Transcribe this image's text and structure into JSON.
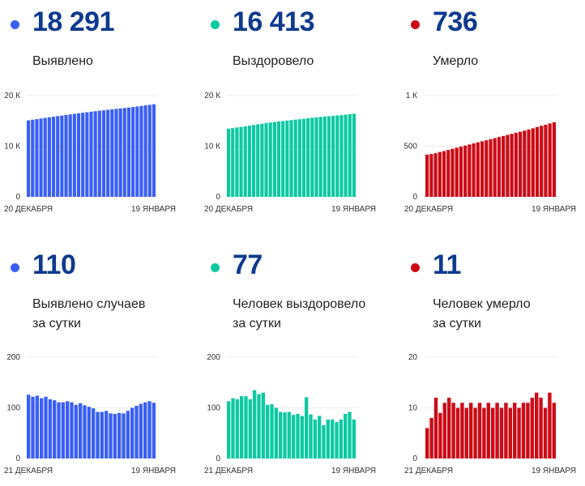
{
  "panels": [
    {
      "number": "18 291",
      "label": [
        "Выявлено"
      ],
      "color": "#3a5ff5"
    },
    {
      "number": "16 413",
      "label": [
        "Выздоровело"
      ],
      "color": "#0cc9a2"
    },
    {
      "number": "736",
      "label": [
        "Умерло"
      ],
      "color": "#cc0b16"
    },
    {
      "number": "110",
      "label": [
        "Выявлено случаев",
        "за сутки"
      ],
      "color": "#3a5ff5"
    },
    {
      "number": "77",
      "label": [
        "Человек выздоровело",
        "за сутки"
      ],
      "color": "#0cc9a2"
    },
    {
      "number": "11",
      "label": [
        "Человек умерло",
        "за сутки"
      ],
      "color": "#cc0b16"
    }
  ],
  "chart_data": [
    {
      "type": "bar",
      "title": "Выявлено",
      "ylim": [
        0,
        20000
      ],
      "yticks": [
        0,
        10000,
        20000
      ],
      "ytick_labels": [
        "0",
        "10 К",
        "20 К"
      ],
      "xlabel_start": "20 ДЕКАБРЯ",
      "xlabel_end": "19 ЯНВАРЯ",
      "color": "#3a5ff5",
      "values": [
        15105,
        15231,
        15353,
        15477,
        15596,
        15718,
        15835,
        15950,
        16061,
        16172,
        16285,
        16396,
        16502,
        16611,
        16716,
        16818,
        16917,
        17009,
        17101,
        17195,
        17284,
        17372,
        17462,
        17551,
        17645,
        17745,
        17849,
        17957,
        18068,
        18181,
        18291
      ]
    },
    {
      "type": "bar",
      "title": "Выздоровело",
      "ylim": [
        0,
        20000
      ],
      "yticks": [
        0,
        10000,
        20000
      ],
      "ytick_labels": [
        "0",
        "10 К",
        "20 К"
      ],
      "xlabel_start": "20 ДЕКАБРЯ",
      "xlabel_end": "19 ЯНВАРЯ",
      "color": "#0cc9a2",
      "values": [
        13468,
        13581,
        13700,
        13817,
        13940,
        14063,
        14180,
        14315,
        14442,
        14572,
        14678,
        14785,
        14885,
        14977,
        15068,
        15160,
        15246,
        15334,
        15418,
        15539,
        15626,
        15703,
        15787,
        15853,
        15930,
        16007,
        16079,
        16156,
        16244,
        16336,
        16413
      ]
    },
    {
      "type": "bar",
      "title": "Умерло",
      "ylim": [
        0,
        1000
      ],
      "yticks": [
        0,
        500,
        1000
      ],
      "ytick_labels": [
        "0",
        "500",
        "1 К"
      ],
      "xlabel_start": "20 ДЕКАБРЯ",
      "xlabel_end": "19 ЯНВАРЯ",
      "color": "#cc0b16",
      "values": [
        417,
        423,
        431,
        443,
        452,
        463,
        475,
        486,
        496,
        507,
        517,
        528,
        538,
        549,
        559,
        570,
        580,
        591,
        601,
        612,
        622,
        633,
        643,
        654,
        665,
        677,
        690,
        702,
        712,
        725,
        736
      ]
    },
    {
      "type": "bar",
      "title": "Выявлено случаев за сутки",
      "ylim": [
        0,
        200
      ],
      "yticks": [
        0,
        100,
        200
      ],
      "ytick_labels": [
        "0",
        "100",
        "200"
      ],
      "xlabel_start": "21 ДЕКАБРЯ",
      "xlabel_end": "19 ЯНВАРЯ",
      "color": "#3a5ff5",
      "values": [
        126,
        122,
        124,
        119,
        122,
        117,
        115,
        111,
        111,
        113,
        111,
        106,
        109,
        105,
        102,
        99,
        92,
        92,
        94,
        89,
        88,
        90,
        89,
        94,
        100,
        104,
        108,
        111,
        113,
        110
      ]
    },
    {
      "type": "bar",
      "title": "Человек выздоровело за сутки",
      "ylim": [
        0,
        200
      ],
      "yticks": [
        0,
        100,
        200
      ],
      "ytick_labels": [
        "0",
        "100",
        "200"
      ],
      "xlabel_start": "21 ДЕКАБРЯ",
      "xlabel_end": "19 ЯНВАРЯ",
      "color": "#0cc9a2",
      "values": [
        113,
        119,
        117,
        123,
        123,
        117,
        135,
        127,
        130,
        106,
        107,
        100,
        92,
        91,
        92,
        86,
        88,
        84,
        121,
        87,
        77,
        84,
        66,
        77,
        77,
        72,
        77,
        88,
        92,
        77
      ]
    },
    {
      "type": "bar",
      "title": "Человек умерло за сутки",
      "ylim": [
        0,
        20
      ],
      "yticks": [
        0,
        10,
        20
      ],
      "ytick_labels": [
        "0",
        "10",
        "20"
      ],
      "xlabel_start": "21 ДЕКАБРЯ",
      "xlabel_end": "19 ЯНВАРЯ",
      "color": "#cc0b16",
      "values": [
        6,
        8,
        12,
        9,
        11,
        12,
        11,
        10,
        11,
        10,
        11,
        10,
        11,
        10,
        11,
        10,
        11,
        10,
        11,
        10,
        11,
        10,
        11,
        11,
        12,
        13,
        12,
        10,
        13,
        11
      ]
    }
  ]
}
